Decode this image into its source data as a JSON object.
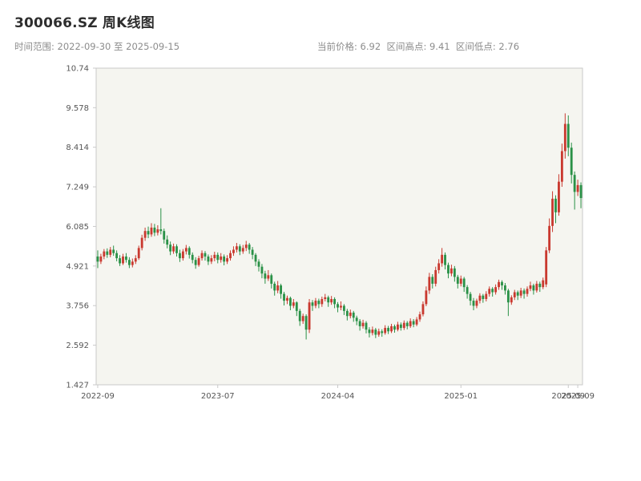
{
  "header": {
    "title": "300066.SZ 周K线图",
    "time_range": "时间范围: 2022-09-30 至 2025-09-15",
    "stats": "当前价格: 6.92  区间高点: 9.41  区间低点: 2.76"
  },
  "chart_data": {
    "type": "candlestick",
    "title": "300066.SZ 周K线图",
    "symbol": "300066.SZ",
    "freq": "weekly",
    "date_start": "2022-09-30",
    "date_end": "2025-09-15",
    "current_price": 6.92,
    "range_high": 9.41,
    "range_low": 2.76,
    "ylim": [
      1.427,
      10.74
    ],
    "y_ticks": [
      "1.427",
      "2.592",
      "3.756",
      "4.921",
      "6.085",
      "7.249",
      "8.414",
      "9.578",
      "10.74"
    ],
    "x_ticks": [
      {
        "label": "2022-09",
        "i": 0
      },
      {
        "label": "2023-07",
        "i": 38
      },
      {
        "label": "2024-04",
        "i": 76
      },
      {
        "label": "2025-01",
        "i": 115
      },
      {
        "label": "2025-09",
        "i": 149
      },
      {
        "label": "2025-09",
        "i": 152
      }
    ],
    "legend_position": "none",
    "grid": false,
    "colors": {
      "up": "#c9392f",
      "down": "#2a9147",
      "plot_bg": "#f5f5f0",
      "border": "#c9c9c9",
      "tick_text": "#555555"
    },
    "candles": [
      [
        5.2,
        5.38,
        4.86,
        5.05
      ],
      [
        5.05,
        5.28,
        4.98,
        5.2
      ],
      [
        5.2,
        5.42,
        5.12,
        5.35
      ],
      [
        5.35,
        5.44,
        5.16,
        5.25
      ],
      [
        5.25,
        5.48,
        5.18,
        5.4
      ],
      [
        5.4,
        5.52,
        5.22,
        5.3
      ],
      [
        5.3,
        5.38,
        5.06,
        5.15
      ],
      [
        5.15,
        5.24,
        4.92,
        5.0
      ],
      [
        5.0,
        5.28,
        4.95,
        5.2
      ],
      [
        5.2,
        5.3,
        5.02,
        5.1
      ],
      [
        5.1,
        5.18,
        4.86,
        4.95
      ],
      [
        4.95,
        5.14,
        4.88,
        5.05
      ],
      [
        5.05,
        5.24,
        4.98,
        5.15
      ],
      [
        5.15,
        5.52,
        5.1,
        5.45
      ],
      [
        5.45,
        5.84,
        5.38,
        5.75
      ],
      [
        5.75,
        6.05,
        5.66,
        5.95
      ],
      [
        5.95,
        6.08,
        5.74,
        5.85
      ],
      [
        5.85,
        6.18,
        5.78,
        6.05
      ],
      [
        6.05,
        6.16,
        5.8,
        5.9
      ],
      [
        5.9,
        6.12,
        5.82,
        6.0
      ],
      [
        6.0,
        6.62,
        5.85,
        5.95
      ],
      [
        5.95,
        6.02,
        5.58,
        5.7
      ],
      [
        5.7,
        5.82,
        5.44,
        5.55
      ],
      [
        5.55,
        5.64,
        5.24,
        5.35
      ],
      [
        5.35,
        5.58,
        5.28,
        5.5
      ],
      [
        5.5,
        5.56,
        5.2,
        5.3
      ],
      [
        5.3,
        5.4,
        5.04,
        5.15
      ],
      [
        5.15,
        5.42,
        5.08,
        5.35
      ],
      [
        5.35,
        5.54,
        5.26,
        5.45
      ],
      [
        5.45,
        5.5,
        5.14,
        5.25
      ],
      [
        5.25,
        5.32,
        5.0,
        5.1
      ],
      [
        5.1,
        5.18,
        4.84,
        4.95
      ],
      [
        4.95,
        5.22,
        4.9,
        5.15
      ],
      [
        5.15,
        5.38,
        5.08,
        5.3
      ],
      [
        5.3,
        5.36,
        5.08,
        5.2
      ],
      [
        5.2,
        5.26,
        4.95,
        5.05
      ],
      [
        5.05,
        5.24,
        4.98,
        5.15
      ],
      [
        5.15,
        5.34,
        5.06,
        5.25
      ],
      [
        5.25,
        5.32,
        5.0,
        5.1
      ],
      [
        5.1,
        5.3,
        5.02,
        5.2
      ],
      [
        5.2,
        5.26,
        4.94,
        5.05
      ],
      [
        5.05,
        5.24,
        4.98,
        5.15
      ],
      [
        5.15,
        5.38,
        5.08,
        5.3
      ],
      [
        5.3,
        5.5,
        5.22,
        5.4
      ],
      [
        5.4,
        5.6,
        5.32,
        5.5
      ],
      [
        5.5,
        5.56,
        5.24,
        5.35
      ],
      [
        5.35,
        5.54,
        5.28,
        5.45
      ],
      [
        5.45,
        5.66,
        5.36,
        5.55
      ],
      [
        5.55,
        5.6,
        5.28,
        5.4
      ],
      [
        5.4,
        5.48,
        5.12,
        5.25
      ],
      [
        5.25,
        5.3,
        4.92,
        5.05
      ],
      [
        5.05,
        5.12,
        4.76,
        4.9
      ],
      [
        4.9,
        4.98,
        4.56,
        4.7
      ],
      [
        4.7,
        4.78,
        4.4,
        4.55
      ],
      [
        4.55,
        4.8,
        4.48,
        4.65
      ],
      [
        4.65,
        4.7,
        4.26,
        4.4
      ],
      [
        4.4,
        4.46,
        4.05,
        4.2
      ],
      [
        4.2,
        4.48,
        4.12,
        4.35
      ],
      [
        4.35,
        4.4,
        3.96,
        4.1
      ],
      [
        4.1,
        4.16,
        3.76,
        3.9
      ],
      [
        3.9,
        4.05,
        3.8,
        3.98
      ],
      [
        3.98,
        4.02,
        3.62,
        3.75
      ],
      [
        3.75,
        3.95,
        3.68,
        3.85
      ],
      [
        3.85,
        3.88,
        3.45,
        3.6
      ],
      [
        3.6,
        3.66,
        3.16,
        3.3
      ],
      [
        3.3,
        3.52,
        3.22,
        3.45
      ],
      [
        3.45,
        3.5,
        2.76,
        3.05
      ],
      [
        3.05,
        3.95,
        2.95,
        3.85
      ],
      [
        3.85,
        3.92,
        3.6,
        3.75
      ],
      [
        3.75,
        3.98,
        3.68,
        3.9
      ],
      [
        3.9,
        3.96,
        3.68,
        3.8
      ],
      [
        3.8,
        4.02,
        3.72,
        3.95
      ],
      [
        3.95,
        4.1,
        3.88,
        4.0
      ],
      [
        4.0,
        4.05,
        3.72,
        3.85
      ],
      [
        3.85,
        4.04,
        3.78,
        3.95
      ],
      [
        3.95,
        4.0,
        3.68,
        3.8
      ],
      [
        3.8,
        3.86,
        3.56,
        3.7
      ],
      [
        3.7,
        3.88,
        3.62,
        3.75
      ],
      [
        3.75,
        3.8,
        3.48,
        3.6
      ],
      [
        3.6,
        3.66,
        3.32,
        3.45
      ],
      [
        3.45,
        3.64,
        3.38,
        3.55
      ],
      [
        3.55,
        3.6,
        3.28,
        3.4
      ],
      [
        3.4,
        3.46,
        3.18,
        3.3
      ],
      [
        3.3,
        3.36,
        3.02,
        3.15
      ],
      [
        3.15,
        3.34,
        3.08,
        3.25
      ],
      [
        3.25,
        3.3,
        2.94,
        3.05
      ],
      [
        3.05,
        3.12,
        2.82,
        2.95
      ],
      [
        2.95,
        3.14,
        2.88,
        3.05
      ],
      [
        3.05,
        3.1,
        2.8,
        2.9
      ],
      [
        2.9,
        3.08,
        2.84,
        3.0
      ],
      [
        3.0,
        3.06,
        2.84,
        2.95
      ],
      [
        2.95,
        3.18,
        2.9,
        3.1
      ],
      [
        3.1,
        3.16,
        2.92,
        3.0
      ],
      [
        3.0,
        3.22,
        2.95,
        3.15
      ],
      [
        3.15,
        3.2,
        2.96,
        3.05
      ],
      [
        3.05,
        3.28,
        3.0,
        3.2
      ],
      [
        3.2,
        3.26,
        3.02,
        3.1
      ],
      [
        3.1,
        3.32,
        3.04,
        3.25
      ],
      [
        3.25,
        3.3,
        3.06,
        3.15
      ],
      [
        3.15,
        3.38,
        3.1,
        3.3
      ],
      [
        3.3,
        3.36,
        3.12,
        3.2
      ],
      [
        3.2,
        3.42,
        3.15,
        3.35
      ],
      [
        3.35,
        3.58,
        3.28,
        3.5
      ],
      [
        3.5,
        3.88,
        3.44,
        3.8
      ],
      [
        3.8,
        4.32,
        3.74,
        4.2
      ],
      [
        4.2,
        4.72,
        4.1,
        4.6
      ],
      [
        4.6,
        4.68,
        4.26,
        4.4
      ],
      [
        4.4,
        4.9,
        4.32,
        4.8
      ],
      [
        4.8,
        5.12,
        4.7,
        5.0
      ],
      [
        5.0,
        5.45,
        4.9,
        5.25
      ],
      [
        5.25,
        5.32,
        4.82,
        4.95
      ],
      [
        4.95,
        5.02,
        4.56,
        4.7
      ],
      [
        4.7,
        4.96,
        4.62,
        4.85
      ],
      [
        4.85,
        4.92,
        4.46,
        4.6
      ],
      [
        4.6,
        4.66,
        4.26,
        4.4
      ],
      [
        4.4,
        4.64,
        4.32,
        4.55
      ],
      [
        4.55,
        4.6,
        4.16,
        4.3
      ],
      [
        4.3,
        4.36,
        3.96,
        4.1
      ],
      [
        4.1,
        4.16,
        3.76,
        3.9
      ],
      [
        3.9,
        3.98,
        3.62,
        3.75
      ],
      [
        3.75,
        3.96,
        3.68,
        3.9
      ],
      [
        3.9,
        4.12,
        3.82,
        4.05
      ],
      [
        4.05,
        4.1,
        3.84,
        3.95
      ],
      [
        3.95,
        4.18,
        3.88,
        4.1
      ],
      [
        4.1,
        4.32,
        4.02,
        4.25
      ],
      [
        4.25,
        4.3,
        4.02,
        4.15
      ],
      [
        4.15,
        4.38,
        4.08,
        4.3
      ],
      [
        4.3,
        4.52,
        4.22,
        4.45
      ],
      [
        4.45,
        4.5,
        4.22,
        4.35
      ],
      [
        4.35,
        4.42,
        4.08,
        4.2
      ],
      [
        4.2,
        4.25,
        3.45,
        3.85
      ],
      [
        3.85,
        4.06,
        3.78,
        4.0
      ],
      [
        4.0,
        4.22,
        3.92,
        4.15
      ],
      [
        4.15,
        4.2,
        3.92,
        4.05
      ],
      [
        4.05,
        4.28,
        3.98,
        4.2
      ],
      [
        4.2,
        4.26,
        3.96,
        4.1
      ],
      [
        4.1,
        4.32,
        4.02,
        4.25
      ],
      [
        4.25,
        4.46,
        4.18,
        4.35
      ],
      [
        4.35,
        4.4,
        4.08,
        4.2
      ],
      [
        4.2,
        4.48,
        4.14,
        4.4
      ],
      [
        4.4,
        4.46,
        4.16,
        4.3
      ],
      [
        4.3,
        4.58,
        4.24,
        4.5
      ],
      [
        4.38,
        5.48,
        4.3,
        5.38
      ],
      [
        5.38,
        6.32,
        5.3,
        6.1
      ],
      [
        6.1,
        7.12,
        5.92,
        6.9
      ],
      [
        6.9,
        7.0,
        6.18,
        6.5
      ],
      [
        6.5,
        7.62,
        6.4,
        7.4
      ],
      [
        7.4,
        8.52,
        7.25,
        8.3
      ],
      [
        8.3,
        9.41,
        8.08,
        9.1
      ],
      [
        9.1,
        9.35,
        8.15,
        8.4
      ],
      [
        8.4,
        8.55,
        7.35,
        7.6
      ],
      [
        7.6,
        7.7,
        6.58,
        7.1
      ],
      [
        7.1,
        7.46,
        6.98,
        7.3
      ],
      [
        7.3,
        7.38,
        6.62,
        6.92
      ]
    ]
  }
}
